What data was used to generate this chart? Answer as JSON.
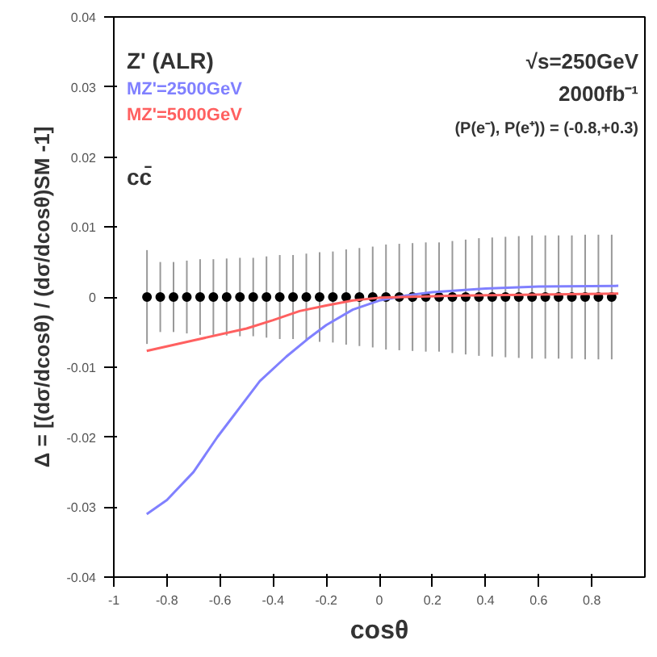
{
  "chart_data": {
    "type": "line",
    "xlabel": "cosθ",
    "ylabel": "Δ = [(dσ/dcosθ) / (dσ/dcosθ)SM -1]",
    "annotations": [
      "Z' (ALR)",
      "cc̄",
      "√s=250GeV",
      "2000fb⁻¹",
      "(P(e⁻), P(e⁺)) = (-0.8,+0.3)"
    ],
    "xlim": [
      -1,
      1
    ],
    "xticks": [
      -1,
      -0.8,
      -0.6,
      -0.4,
      -0.2,
      0,
      0.2,
      0.4,
      0.6,
      0.8
    ],
    "ylim": [
      -0.04,
      0.04
    ],
    "yticks": [
      -0.04,
      -0.03,
      -0.02,
      -0.01,
      0,
      0.01,
      0.02,
      0.03,
      0.04
    ],
    "legend": "top left",
    "grid": false,
    "series": [
      {
        "type": "scatter",
        "marker": "circle",
        "color": "#000000",
        "x": [
          -0.875,
          -0.825,
          -0.775,
          -0.725,
          -0.675,
          -0.625,
          -0.575,
          -0.525,
          -0.475,
          -0.425,
          -0.375,
          -0.325,
          -0.275,
          -0.225,
          -0.175,
          -0.125,
          -0.075,
          -0.025,
          0.025,
          0.075,
          0.125,
          0.175,
          0.225,
          0.275,
          0.325,
          0.375,
          0.425,
          0.475,
          0.525,
          0.575,
          0.625,
          0.675,
          0.725,
          0.775,
          0.825,
          0.875
        ],
        "values": [
          0,
          0,
          0,
          0,
          0,
          0,
          0,
          0,
          0,
          0,
          0,
          0,
          0,
          0,
          0,
          0,
          0,
          0,
          0,
          0,
          0,
          0,
          0,
          0,
          0,
          0,
          0,
          0,
          0,
          0,
          0,
          0,
          0,
          0,
          0,
          0
        ],
        "errors": [
          0.0067,
          0.005,
          0.005,
          0.0052,
          0.0054,
          0.0054,
          0.0055,
          0.0056,
          0.0056,
          0.0058,
          0.006,
          0.006,
          0.0062,
          0.0064,
          0.0065,
          0.0068,
          0.007,
          0.0072,
          0.0075,
          0.0076,
          0.0077,
          0.0078,
          0.0078,
          0.008,
          0.0082,
          0.0084,
          0.0085,
          0.0086,
          0.0087,
          0.0088,
          0.0088,
          0.0088,
          0.0088,
          0.0089,
          0.0089,
          0.0089
        ]
      },
      {
        "name": "MZ'=2500GeV",
        "color": "#8080ff",
        "x": [
          -0.876,
          -0.8,
          -0.7,
          -0.61,
          -0.55,
          -0.45,
          -0.35,
          -0.27,
          -0.2,
          -0.1,
          0,
          0.1,
          0.2,
          0.4,
          0.6,
          0.9
        ],
        "values": [
          -0.031,
          -0.029,
          -0.025,
          -0.02,
          -0.017,
          -0.012,
          -0.0085,
          -0.006,
          -0.004,
          -0.0018,
          -0.0005,
          0.0002,
          0.0007,
          0.0012,
          0.0015,
          0.0016
        ]
      },
      {
        "name": "MZ'=5000GeV",
        "color": "#ff6060",
        "x": [
          -0.876,
          -0.7,
          -0.5,
          -0.4,
          -0.3,
          -0.2,
          -0.1,
          0,
          0.3,
          0.9
        ],
        "values": [
          -0.0077,
          -0.0062,
          -0.0045,
          -0.0033,
          -0.002,
          -0.0012,
          -0.0005,
          -0.0001,
          0.0002,
          0.0005
        ]
      }
    ]
  }
}
